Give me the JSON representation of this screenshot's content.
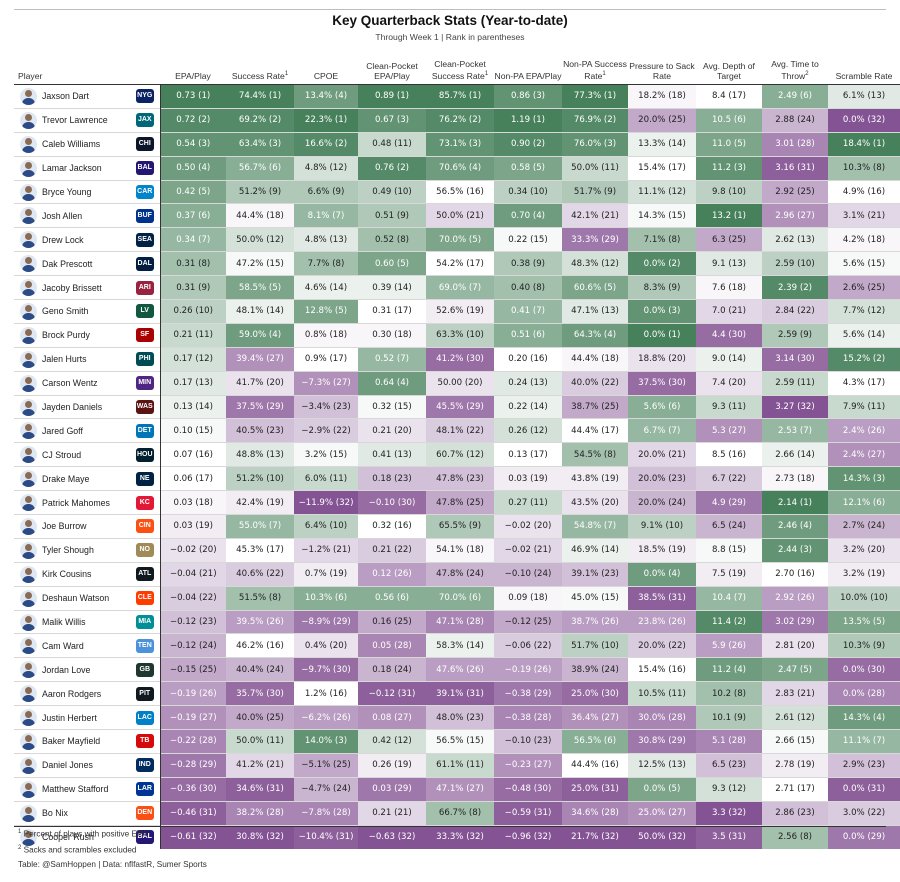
{
  "title": "Key Quarterback Stats (Year-to-date)",
  "subtitle": "Through Week 1 | Rank in parentheses",
  "footnotes": [
    "Percent of plays with positive EPA",
    "Sacks and scrambles excluded"
  ],
  "credit": "Table: @SamHoppen | Data: nflfastR, Sumer Sports",
  "colors": {
    "green_dark": "#3d7a52",
    "green_light": "#e6f3e6",
    "purple_dark": "#7e4a8e",
    "purple_light": "#f2e8f3",
    "neutral": "#ffffff"
  },
  "chart_data": {
    "type": "table",
    "player_header": "Player",
    "columns": [
      {
        "label": "EPA/Play",
        "sup": ""
      },
      {
        "label": "Success Rate",
        "sup": "1"
      },
      {
        "label": "CPOE",
        "sup": ""
      },
      {
        "label": "Clean-Pocket EPA/Play",
        "sup": ""
      },
      {
        "label": "Clean-Pocket Success Rate",
        "sup": "1"
      },
      {
        "label": "Non-PA EPA/Play",
        "sup": ""
      },
      {
        "label": "Non-PA Success Rate",
        "sup": "1"
      },
      {
        "label": "Pressure to Sack Rate",
        "sup": ""
      },
      {
        "label": "Avg. Depth of Target",
        "sup": ""
      },
      {
        "label": "Avg. Time to Throw",
        "sup": "2"
      },
      {
        "label": "Scramble Rate",
        "sup": ""
      }
    ],
    "rows": [
      {
        "player": "Jaxson Dart",
        "team": "NYG",
        "logo": "#0b2265",
        "cells": [
          "0.73 (1)",
          "74.4% (1)",
          "13.4% (4)",
          "0.89 (1)",
          "85.7% (1)",
          "0.86 (3)",
          "77.3% (1)",
          "18.2% (18)",
          "8.4 (17)",
          "2.49 (6)",
          "6.1% (13)"
        ]
      },
      {
        "player": "Trevor Lawrence",
        "team": "JAX",
        "logo": "#006778",
        "cells": [
          "0.72 (2)",
          "69.2% (2)",
          "22.3% (1)",
          "0.67 (3)",
          "76.2% (2)",
          "1.19 (1)",
          "76.9% (2)",
          "20.0% (25)",
          "10.5 (6)",
          "2.88 (24)",
          "0.0% (32)"
        ]
      },
      {
        "player": "Caleb Williams",
        "team": "CHI",
        "logo": "#0b162a",
        "cells": [
          "0.54 (3)",
          "63.4% (3)",
          "16.6% (2)",
          "0.48 (11)",
          "73.1% (3)",
          "0.90 (2)",
          "76.0% (3)",
          "13.3% (14)",
          "11.0 (5)",
          "3.01 (28)",
          "18.4% (1)"
        ]
      },
      {
        "player": "Lamar Jackson",
        "team": "BAL",
        "logo": "#241773",
        "cells": [
          "0.50 (4)",
          "56.7% (6)",
          "4.8% (12)",
          "0.76 (2)",
          "70.6% (4)",
          "0.58 (5)",
          "50.0% (11)",
          "15.4% (17)",
          "11.2 (3)",
          "3.16 (31)",
          "10.3% (8)"
        ]
      },
      {
        "player": "Bryce Young",
        "team": "CAR",
        "logo": "#0085ca",
        "cells": [
          "0.42 (5)",
          "51.2% (9)",
          "6.6% (9)",
          "0.49 (10)",
          "56.5% (16)",
          "0.34 (10)",
          "51.7% (9)",
          "11.1% (12)",
          "9.8 (10)",
          "2.92 (25)",
          "4.9% (16)"
        ]
      },
      {
        "player": "Josh Allen",
        "team": "BUF",
        "logo": "#00338d",
        "cells": [
          "0.37 (6)",
          "44.4% (18)",
          "8.1% (7)",
          "0.51 (9)",
          "50.0% (21)",
          "0.70 (4)",
          "42.1% (21)",
          "14.3% (15)",
          "13.2 (1)",
          "2.96 (27)",
          "3.1% (21)"
        ]
      },
      {
        "player": "Drew Lock",
        "team": "SEA",
        "logo": "#002244",
        "cells": [
          "0.34 (7)",
          "50.0% (12)",
          "4.8% (13)",
          "0.52 (8)",
          "70.0% (5)",
          "0.22 (15)",
          "33.3% (29)",
          "7.1% (8)",
          "6.3 (25)",
          "2.62 (13)",
          "4.2% (18)"
        ]
      },
      {
        "player": "Dak Prescott",
        "team": "DAL",
        "logo": "#041e42",
        "cells": [
          "0.31 (8)",
          "47.2% (15)",
          "7.7% (8)",
          "0.60 (5)",
          "54.2% (17)",
          "0.38 (9)",
          "48.3% (12)",
          "0.0% (2)",
          "9.1 (13)",
          "2.59 (10)",
          "5.6% (15)"
        ]
      },
      {
        "player": "Jacoby Brissett",
        "team": "ARI",
        "logo": "#97233f",
        "cells": [
          "0.31 (9)",
          "58.5% (5)",
          "4.6% (14)",
          "0.39 (14)",
          "69.0% (7)",
          "0.40 (8)",
          "60.6% (5)",
          "8.3% (9)",
          "7.6 (18)",
          "2.39 (2)",
          "2.6% (25)"
        ]
      },
      {
        "player": "Geno Smith",
        "team": "LV",
        "logo": "#125740",
        "cells": [
          "0.26 (10)",
          "48.1% (14)",
          "12.8% (5)",
          "0.31 (17)",
          "52.6% (19)",
          "0.41 (7)",
          "47.1% (13)",
          "0.0% (3)",
          "7.0 (21)",
          "2.84 (22)",
          "7.7% (12)"
        ]
      },
      {
        "player": "Brock Purdy",
        "team": "SF",
        "logo": "#aa0000",
        "cells": [
          "0.21 (11)",
          "59.0% (4)",
          "0.8% (18)",
          "0.30 (18)",
          "63.3% (10)",
          "0.51 (6)",
          "64.3% (4)",
          "0.0% (1)",
          "4.4 (30)",
          "2.59 (9)",
          "5.6% (14)"
        ]
      },
      {
        "player": "Jalen Hurts",
        "team": "PHI",
        "logo": "#004c54",
        "cells": [
          "0.17 (12)",
          "39.4% (27)",
          "0.9% (17)",
          "0.52 (7)",
          "41.2% (30)",
          "0.20 (16)",
          "44.4% (18)",
          "18.8% (20)",
          "9.0 (14)",
          "3.14 (30)",
          "15.2% (2)"
        ]
      },
      {
        "player": "Carson Wentz",
        "team": "MIN",
        "logo": "#4f2683",
        "cells": [
          "0.17 (13)",
          "41.7% (20)",
          "−7.3% (27)",
          "0.64 (4)",
          "50.00 (20)",
          "0.24 (13)",
          "40.0% (22)",
          "37.5% (30)",
          "7.4 (20)",
          "2.59 (11)",
          "4.3% (17)"
        ]
      },
      {
        "player": "Jayden Daniels",
        "team": "WAS",
        "logo": "#5a1414",
        "cells": [
          "0.13 (14)",
          "37.5% (29)",
          "−3.4% (23)",
          "0.32 (15)",
          "45.5% (29)",
          "0.22 (14)",
          "38.7% (25)",
          "5.6% (6)",
          "9.3 (11)",
          "3.27 (32)",
          "7.9% (11)"
        ]
      },
      {
        "player": "Jared Goff",
        "team": "DET",
        "logo": "#0076b6",
        "cells": [
          "0.10 (15)",
          "40.5% (23)",
          "−2.9% (22)",
          "0.21 (20)",
          "48.1% (22)",
          "0.26 (12)",
          "44.4% (17)",
          "6.7% (7)",
          "5.3 (27)",
          "2.53 (7)",
          "2.4% (26)"
        ]
      },
      {
        "player": "CJ Stroud",
        "team": "HOU",
        "logo": "#03202f",
        "cells": [
          "0.07 (16)",
          "48.8% (13)",
          "3.2% (15)",
          "0.41 (13)",
          "60.7% (12)",
          "0.13 (17)",
          "54.5% (8)",
          "20.0% (21)",
          "8.5 (16)",
          "2.66 (14)",
          "2.4% (27)"
        ]
      },
      {
        "player": "Drake Maye",
        "team": "NE",
        "logo": "#002244",
        "cells": [
          "0.06 (17)",
          "51.2% (10)",
          "6.0% (11)",
          "0.18 (23)",
          "47.8% (23)",
          "0.03 (19)",
          "43.8% (19)",
          "20.0% (23)",
          "6.7 (22)",
          "2.73 (18)",
          "14.3% (3)"
        ]
      },
      {
        "player": "Patrick Mahomes",
        "team": "KC",
        "logo": "#e31837",
        "cells": [
          "0.03 (18)",
          "42.4% (19)",
          "−11.9% (32)",
          "−0.10 (30)",
          "47.8% (25)",
          "0.27 (11)",
          "43.5% (20)",
          "20.0% (24)",
          "4.9 (29)",
          "2.14 (1)",
          "12.1% (6)"
        ]
      },
      {
        "player": "Joe Burrow",
        "team": "CIN",
        "logo": "#fb4f14",
        "cells": [
          "0.03 (19)",
          "55.0% (7)",
          "6.4% (10)",
          "0.32 (16)",
          "65.5% (9)",
          "−0.02 (20)",
          "54.8% (7)",
          "9.1% (10)",
          "6.5 (24)",
          "2.46 (4)",
          "2.7% (24)"
        ]
      },
      {
        "player": "Tyler Shough",
        "team": "NO",
        "logo": "#a08a58",
        "cells": [
          "−0.02 (20)",
          "45.3% (17)",
          "−1.2% (21)",
          "0.21 (22)",
          "54.1% (18)",
          "−0.02 (21)",
          "46.9% (14)",
          "18.5% (19)",
          "8.8 (15)",
          "2.44 (3)",
          "3.2% (20)"
        ]
      },
      {
        "player": "Kirk Cousins",
        "team": "ATL",
        "logo": "#101820",
        "cells": [
          "−0.04 (21)",
          "40.6% (22)",
          "0.7% (19)",
          "0.12 (26)",
          "47.8% (24)",
          "−0.10 (24)",
          "39.1% (23)",
          "0.0% (4)",
          "7.5 (19)",
          "2.70 (16)",
          "3.2% (19)"
        ]
      },
      {
        "player": "Deshaun Watson",
        "team": "CLE",
        "logo": "#ff3c00",
        "cells": [
          "−0.04 (22)",
          "51.5% (8)",
          "10.3% (6)",
          "0.56 (6)",
          "70.0% (6)",
          "0.09 (18)",
          "45.0% (15)",
          "38.5% (31)",
          "10.4 (7)",
          "2.92 (26)",
          "10.0% (10)"
        ]
      },
      {
        "player": "Malik Willis",
        "team": "MIA",
        "logo": "#008e97",
        "cells": [
          "−0.12 (23)",
          "39.5% (26)",
          "−8.9% (29)",
          "0.16 (25)",
          "47.1% (28)",
          "−0.12 (25)",
          "38.7% (26)",
          "23.8% (26)",
          "11.4 (2)",
          "3.02 (29)",
          "13.5% (5)"
        ]
      },
      {
        "player": "Cam Ward",
        "team": "TEN",
        "logo": "#4b92db",
        "cells": [
          "−0.12 (24)",
          "46.2% (16)",
          "0.4% (20)",
          "0.05 (28)",
          "58.3% (14)",
          "−0.06 (22)",
          "51.7% (10)",
          "20.0% (22)",
          "5.9 (26)",
          "2.81 (20)",
          "10.3% (9)"
        ]
      },
      {
        "player": "Jordan Love",
        "team": "GB",
        "logo": "#203731",
        "cells": [
          "−0.15 (25)",
          "40.4% (24)",
          "−9.7% (30)",
          "0.18 (24)",
          "47.6% (26)",
          "−0.19 (26)",
          "38.9% (24)",
          "15.4% (16)",
          "11.2 (4)",
          "2.47 (5)",
          "0.0% (30)"
        ]
      },
      {
        "player": "Aaron Rodgers",
        "team": "PIT",
        "logo": "#101820",
        "cells": [
          "−0.19 (26)",
          "35.7% (30)",
          "1.2% (16)",
          "−0.12 (31)",
          "39.1% (31)",
          "−0.38 (29)",
          "25.0% (30)",
          "10.5% (11)",
          "10.2 (8)",
          "2.83 (21)",
          "0.0% (28)"
        ]
      },
      {
        "player": "Justin Herbert",
        "team": "LAC",
        "logo": "#0080c6",
        "cells": [
          "−0.19 (27)",
          "40.0% (25)",
          "−6.2% (26)",
          "0.08 (27)",
          "48.0% (23)",
          "−0.38 (28)",
          "36.4% (27)",
          "30.0% (28)",
          "10.1 (9)",
          "2.61 (12)",
          "14.3% (4)"
        ]
      },
      {
        "player": "Baker Mayfield",
        "team": "TB",
        "logo": "#d50a0a",
        "cells": [
          "−0.22 (28)",
          "50.0% (11)",
          "14.0% (3)",
          "0.42 (12)",
          "56.5% (15)",
          "−0.10 (23)",
          "56.5% (6)",
          "30.8% (29)",
          "5.1 (28)",
          "2.66 (15)",
          "11.1% (7)"
        ]
      },
      {
        "player": "Daniel Jones",
        "team": "IND",
        "logo": "#002c5f",
        "cells": [
          "−0.28 (29)",
          "41.2% (21)",
          "−5.1% (25)",
          "0.26 (19)",
          "61.1% (11)",
          "−0.23 (27)",
          "44.4% (16)",
          "12.5% (13)",
          "6.5 (23)",
          "2.78 (19)",
          "2.9% (23)"
        ]
      },
      {
        "player": "Matthew Stafford",
        "team": "LAR",
        "logo": "#003594",
        "cells": [
          "−0.36 (30)",
          "34.6% (31)",
          "−4.7% (24)",
          "0.03 (29)",
          "47.1% (27)",
          "−0.48 (30)",
          "25.0% (31)",
          "0.0% (5)",
          "9.3 (12)",
          "2.71 (17)",
          "0.0% (31)"
        ]
      },
      {
        "player": "Bo Nix",
        "team": "DEN",
        "logo": "#fb4f14",
        "cells": [
          "−0.46 (31)",
          "38.2% (28)",
          "−7.8% (28)",
          "0.21 (21)",
          "66.7% (8)",
          "−0.59 (31)",
          "34.6% (28)",
          "25.0% (27)",
          "3.3 (32)",
          "2.86 (23)",
          "3.0% (22)"
        ]
      },
      {
        "player": "Cooper Rush",
        "team": "BAL",
        "logo": "#241773",
        "cells": [
          "−0.61 (32)",
          "30.8% (32)",
          "−10.4% (31)",
          "−0.63 (32)",
          "33.3% (32)",
          "−0.96 (32)",
          "21.7% (32)",
          "50.0% (32)",
          "3.5 (31)",
          "2.56 (8)",
          "0.0% (29)"
        ]
      }
    ]
  }
}
